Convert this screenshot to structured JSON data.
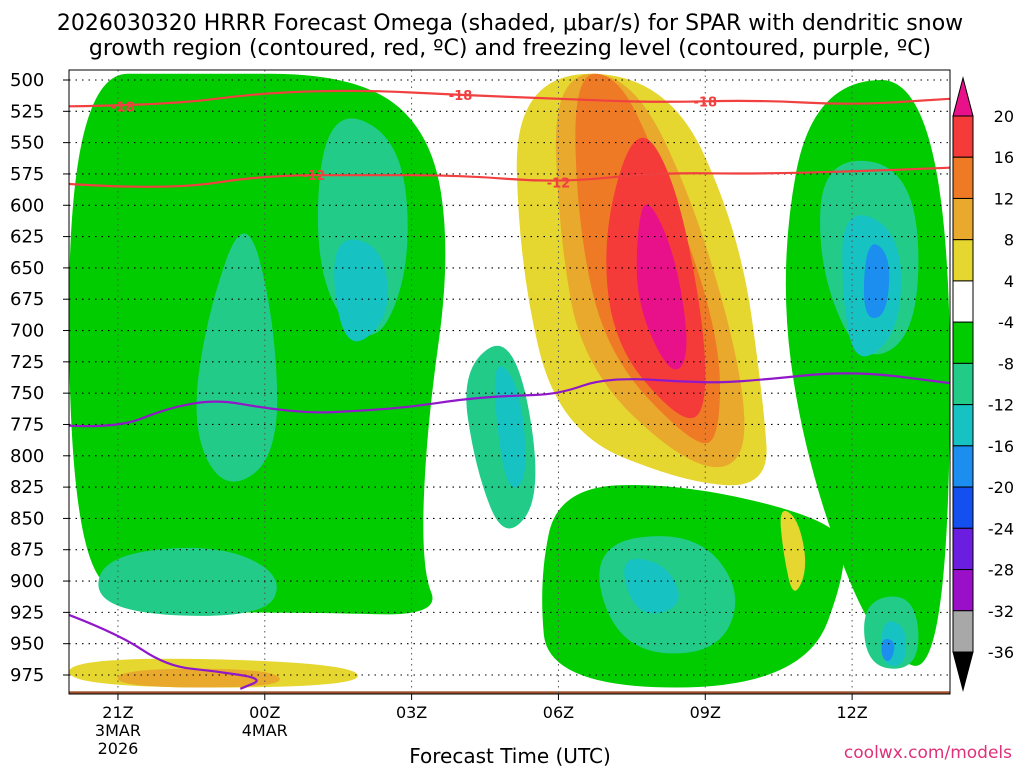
{
  "chart_data": {
    "type": "heatmap",
    "title_line1": "2026030320 HRRR Forecast Omega (shaded, μbar/s) for SPAR with dendritic snow",
    "title_line2": "growth region (contoured, red, ºC) and freezing level (contoured, purple, ºC)",
    "xlabel": "Forecast Time (UTC)",
    "credit": "coolwx.com/models",
    "y_ticks": [
      500,
      525,
      550,
      575,
      600,
      625,
      650,
      675,
      700,
      725,
      750,
      775,
      800,
      825,
      850,
      875,
      900,
      925,
      950,
      975
    ],
    "x_ticks": [
      {
        "hour": 0,
        "label": "21Z",
        "sub1": "3MAR",
        "sub2": "2026"
      },
      {
        "hour": 3,
        "label": "00Z",
        "sub1": "4MAR",
        "sub2": ""
      },
      {
        "hour": 6,
        "label": "03Z",
        "sub1": "",
        "sub2": ""
      },
      {
        "hour": 9,
        "label": "06Z",
        "sub1": "",
        "sub2": ""
      },
      {
        "hour": 12,
        "label": "09Z",
        "sub1": "",
        "sub2": ""
      },
      {
        "hour": 15,
        "label": "12Z",
        "sub1": "",
        "sub2": ""
      }
    ],
    "x_range": [
      -1,
      17
    ],
    "y_range": [
      490,
      995
    ],
    "colorbar": {
      "levels": [
        20,
        16,
        12,
        8,
        4,
        -4,
        -8,
        -12,
        -16,
        -20,
        -24,
        -28,
        -32,
        -36
      ],
      "colors": [
        "#e8118a",
        "#f53a3a",
        "#ee7a26",
        "#e8a92c",
        "#e6d630",
        "#ffffff",
        "#00cc00",
        "#22cc88",
        "#16c2c2",
        "#1c8ef0",
        "#1450f0",
        "#6c1ee0",
        "#9a10c8",
        "#a8a8a8",
        "#000000"
      ]
    },
    "omega_fill_regions": [
      {
        "level": -4,
        "color": "#00cc00",
        "points": [
          [
            1.4,
            495
          ],
          [
            4.8,
            495
          ],
          [
            6.4,
            540
          ],
          [
            6.8,
            640
          ],
          [
            6.3,
            780
          ],
          [
            6.2,
            890
          ],
          [
            6.6,
            928
          ],
          [
            4.0,
            925
          ],
          [
            0.5,
            925
          ],
          [
            -1,
            880
          ],
          [
            -1,
            495
          ]
        ]
      },
      {
        "level": -4,
        "color": "#00cc00",
        "points": [
          [
            9.0,
            825
          ],
          [
            11.5,
            822
          ],
          [
            14.5,
            850
          ],
          [
            15.0,
            880
          ],
          [
            14.0,
            985
          ],
          [
            8.8,
            985
          ],
          [
            8.6,
            900
          ]
        ]
      },
      {
        "level": -4,
        "color": "#00cc00",
        "points": [
          [
            14.2,
            500
          ],
          [
            17,
            500
          ],
          [
            17,
            975
          ],
          [
            15.5,
            960
          ],
          [
            14.0,
            800
          ],
          [
            13.5,
            650
          ]
        ]
      },
      {
        "level": -8,
        "color": "#22cc88",
        "points": [
          [
            1.8,
            690
          ],
          [
            2.6,
            600
          ],
          [
            3.2,
            690
          ],
          [
            3.3,
            800
          ],
          [
            2.2,
            830
          ],
          [
            1.5,
            780
          ]
        ]
      },
      {
        "level": -8,
        "color": "#22cc88",
        "points": [
          [
            4.2,
            520
          ],
          [
            5.8,
            545
          ],
          [
            6.0,
            650
          ],
          [
            5.2,
            720
          ],
          [
            4.0,
            660
          ]
        ]
      },
      {
        "level": -8,
        "color": "#22cc88",
        "points": [
          [
            7.0,
            730
          ],
          [
            8.1,
            700
          ],
          [
            8.7,
            830
          ],
          [
            7.9,
            870
          ],
          [
            7.3,
            810
          ]
        ]
      },
      {
        "level": -8,
        "color": "#22cc88",
        "points": [
          [
            -0.4,
            880
          ],
          [
            2.0,
            870
          ],
          [
            3.4,
            895
          ],
          [
            3.0,
            930
          ],
          [
            -0.4,
            925
          ]
        ]
      },
      {
        "level": -8,
        "color": "#22cc88",
        "points": [
          [
            9.6,
            870
          ],
          [
            11.8,
            860
          ],
          [
            12.8,
            910
          ],
          [
            12.2,
            960
          ],
          [
            10.2,
            955
          ]
        ]
      },
      {
        "level": -8,
        "color": "#22cc88",
        "points": [
          [
            14.4,
            560
          ],
          [
            16.3,
            570
          ],
          [
            16.4,
            700
          ],
          [
            15.2,
            730
          ],
          [
            14.3,
            650
          ]
        ]
      },
      {
        "level": -8,
        "color": "#22cc88",
        "points": [
          [
            15.2,
            915
          ],
          [
            16.3,
            910
          ],
          [
            16.4,
            970
          ],
          [
            15.3,
            970
          ]
        ]
      },
      {
        "level": -12,
        "color": "#16c2c2",
        "points": [
          [
            4.3,
            625
          ],
          [
            5.4,
            630
          ],
          [
            5.6,
            690
          ],
          [
            4.6,
            720
          ]
        ]
      },
      {
        "level": -12,
        "color": "#16c2c2",
        "points": [
          [
            7.6,
            720
          ],
          [
            8.2,
            740
          ],
          [
            8.4,
            820
          ],
          [
            7.9,
            830
          ]
        ]
      },
      {
        "level": -12,
        "color": "#16c2c2",
        "points": [
          [
            10.2,
            880
          ],
          [
            11.2,
            885
          ],
          [
            11.6,
            920
          ],
          [
            10.6,
            930
          ]
        ]
      },
      {
        "level": -12,
        "color": "#16c2c2",
        "points": [
          [
            14.8,
            600
          ],
          [
            16.0,
            620
          ],
          [
            16.0,
            700
          ],
          [
            15.1,
            730
          ],
          [
            14.8,
            680
          ]
        ]
      },
      {
        "level": -12,
        "color": "#16c2c2",
        "points": [
          [
            15.6,
            930
          ],
          [
            16.1,
            935
          ],
          [
            16.1,
            968
          ],
          [
            15.6,
            968
          ]
        ]
      },
      {
        "level": -16,
        "color": "#1c8ef0",
        "points": [
          [
            15.3,
            625
          ],
          [
            15.8,
            640
          ],
          [
            15.7,
            690
          ],
          [
            15.2,
            690
          ]
        ]
      },
      {
        "level": -16,
        "color": "#1c8ef0",
        "points": [
          [
            15.6,
            945
          ],
          [
            15.9,
            948
          ],
          [
            15.8,
            965
          ],
          [
            15.6,
            962
          ]
        ]
      },
      {
        "level": 4,
        "color": "#e6d630",
        "points": [
          [
            8.1,
            495
          ],
          [
            11.2,
            495
          ],
          [
            12.7,
            620
          ],
          [
            13.2,
            760
          ],
          [
            13.3,
            825
          ],
          [
            11.6,
            822
          ],
          [
            9.0,
            780
          ],
          [
            8.2,
            650
          ]
        ]
      },
      {
        "level": 4,
        "color": "#e6d630",
        "points": [
          [
            13.5,
            840
          ],
          [
            13.9,
            850
          ],
          [
            14.1,
            890
          ],
          [
            13.8,
            915
          ],
          [
            13.6,
            880
          ]
        ]
      },
      {
        "level": 4,
        "color": "#e6d630",
        "points": [
          [
            -1,
            960
          ],
          [
            4.8,
            965
          ],
          [
            5.0,
            985
          ],
          [
            -1,
            985
          ]
        ]
      },
      {
        "level": 8,
        "color": "#e8a92c",
        "points": [
          [
            8.9,
            495
          ],
          [
            10.5,
            495
          ],
          [
            11.8,
            600
          ],
          [
            12.8,
            740
          ],
          [
            12.8,
            810
          ],
          [
            11.6,
            808
          ],
          [
            9.5,
            730
          ],
          [
            9.0,
            620
          ]
        ]
      },
      {
        "level": 8,
        "color": "#e8a92c",
        "points": [
          [
            0.0,
            970
          ],
          [
            3.2,
            970
          ],
          [
            3.4,
            985
          ],
          [
            0.0,
            985
          ]
        ]
      },
      {
        "level": 12,
        "color": "#ee7a26",
        "points": [
          [
            9.3,
            495
          ],
          [
            10.2,
            495
          ],
          [
            11.0,
            560
          ],
          [
            12.3,
            700
          ],
          [
            12.3,
            790
          ],
          [
            11.7,
            790
          ],
          [
            10.0,
            720
          ],
          [
            9.4,
            620
          ]
        ]
      },
      {
        "level": 16,
        "color": "#f53a3a",
        "points": [
          [
            10.6,
            530
          ],
          [
            11.4,
            580
          ],
          [
            12.0,
            700
          ],
          [
            12.0,
            770
          ],
          [
            11.4,
            770
          ],
          [
            10.1,
            710
          ],
          [
            9.9,
            620
          ]
        ]
      },
      {
        "level": 20,
        "color": "#e8118a",
        "points": [
          [
            10.8,
            590
          ],
          [
            11.4,
            640
          ],
          [
            11.7,
            720
          ],
          [
            11.3,
            738
          ],
          [
            10.6,
            680
          ],
          [
            10.6,
            620
          ]
        ]
      }
    ],
    "dgz_contours": [
      {
        "label": "-18",
        "color": "#f04040",
        "points": [
          [
            -1,
            521
          ],
          [
            1.0,
            520
          ],
          [
            3.0,
            510
          ],
          [
            5.0,
            508
          ],
          [
            7.0,
            512
          ],
          [
            9.0,
            515
          ],
          [
            11.0,
            518
          ],
          [
            13.0,
            516
          ],
          [
            15.0,
            520
          ],
          [
            17,
            515
          ]
        ],
        "labels_at": [
          [
            0.1,
            521
          ],
          [
            7.0,
            512
          ],
          [
            12.0,
            517
          ]
        ]
      },
      {
        "label": "-12",
        "color": "#f04040",
        "points": [
          [
            -1,
            583
          ],
          [
            1.0,
            588
          ],
          [
            3.0,
            576
          ],
          [
            5.0,
            576
          ],
          [
            7.0,
            576
          ],
          [
            9.0,
            582
          ],
          [
            11.0,
            574
          ],
          [
            13.0,
            575
          ],
          [
            15.0,
            573
          ],
          [
            17,
            570
          ]
        ],
        "labels_at": [
          [
            4.0,
            576
          ],
          [
            9.0,
            582
          ]
        ]
      }
    ],
    "freezing_level": {
      "label": "0",
      "color": "#9018c8",
      "points": [
        [
          -1,
          776
        ],
        [
          0,
          778
        ],
        [
          1,
          762
        ],
        [
          2,
          755
        ],
        [
          3,
          762
        ],
        [
          4,
          766
        ],
        [
          5,
          764
        ],
        [
          6,
          761
        ],
        [
          7,
          755
        ],
        [
          8,
          752
        ],
        [
          9,
          751
        ],
        [
          10,
          737
        ],
        [
          12,
          742
        ],
        [
          13,
          740
        ],
        [
          15,
          732
        ],
        [
          17,
          742
        ]
      ],
      "lower_points": [
        [
          -1,
          927
        ],
        [
          0,
          942
        ],
        [
          1,
          968
        ],
        [
          2,
          972
        ],
        [
          3,
          978
        ],
        [
          2.5,
          986
        ]
      ]
    },
    "ground": {
      "color": "#a0522d",
      "from_pressure": 988
    }
  }
}
